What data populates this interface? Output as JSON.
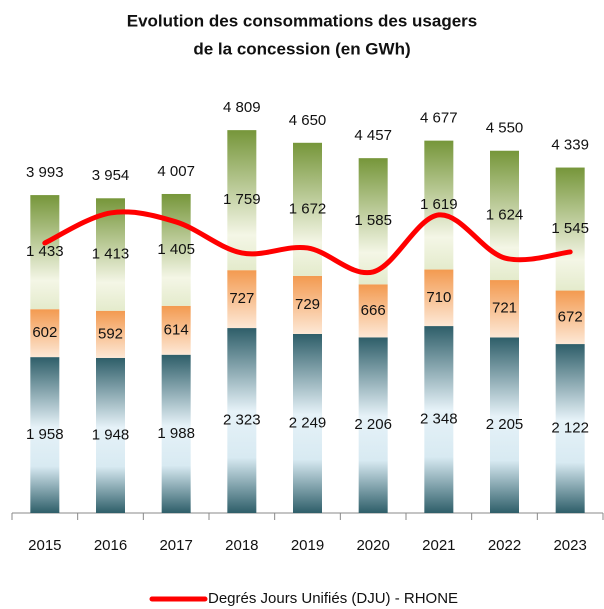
{
  "chart_data": {
    "type": "bar",
    "stacked": true,
    "title": [
      "Evolution des consommations des usagers",
      "de la concession (en GWh)"
    ],
    "categories": [
      "2015",
      "2016",
      "2017",
      "2018",
      "2019",
      "2020",
      "2021",
      "2022",
      "2023"
    ],
    "ylim": [
      0,
      5200
    ],
    "series": [
      {
        "color": "#2e5e69",
        "values": [
          1958,
          1948,
          1988,
          2323,
          2249,
          2206,
          2348,
          2205,
          2122
        ],
        "value_labels": [
          "1 958",
          "1 948",
          "1 988",
          "2 323",
          "2 249",
          "2 206",
          "2 348",
          "2 205",
          "2 122"
        ]
      },
      {
        "color": "#f39a50",
        "values": [
          602,
          592,
          614,
          727,
          729,
          666,
          710,
          721,
          672
        ],
        "value_labels": [
          "602",
          "592",
          "614",
          "727",
          "729",
          "666",
          "710",
          "721",
          "672"
        ]
      },
      {
        "color": "#76963a",
        "values": [
          1433,
          1413,
          1405,
          1759,
          1672,
          1585,
          1619,
          1624,
          1545
        ],
        "value_labels": [
          "1 433",
          "1 413",
          "1 405",
          "1 759",
          "1 672",
          "1 585",
          "1 619",
          "1 624",
          "1 545"
        ]
      },
      {
        "type": "line",
        "name": "Degrés Jours Unifiés (DJU) - RHONE",
        "color": "#ff0000",
        "values": [
          3391,
          3769,
          3656,
          3266,
          3329,
          3028,
          3744,
          3204,
          3279
        ]
      }
    ],
    "totals": {
      "values": [
        3993,
        3954,
        4007,
        4809,
        4650,
        4457,
        4677,
        4550,
        4339
      ],
      "value_labels": [
        "3 993",
        "3 954",
        "4 007",
        "4 809",
        "4 650",
        "4 457",
        "4 677",
        "4 550",
        "4 339"
      ]
    },
    "legend": "bottom"
  }
}
